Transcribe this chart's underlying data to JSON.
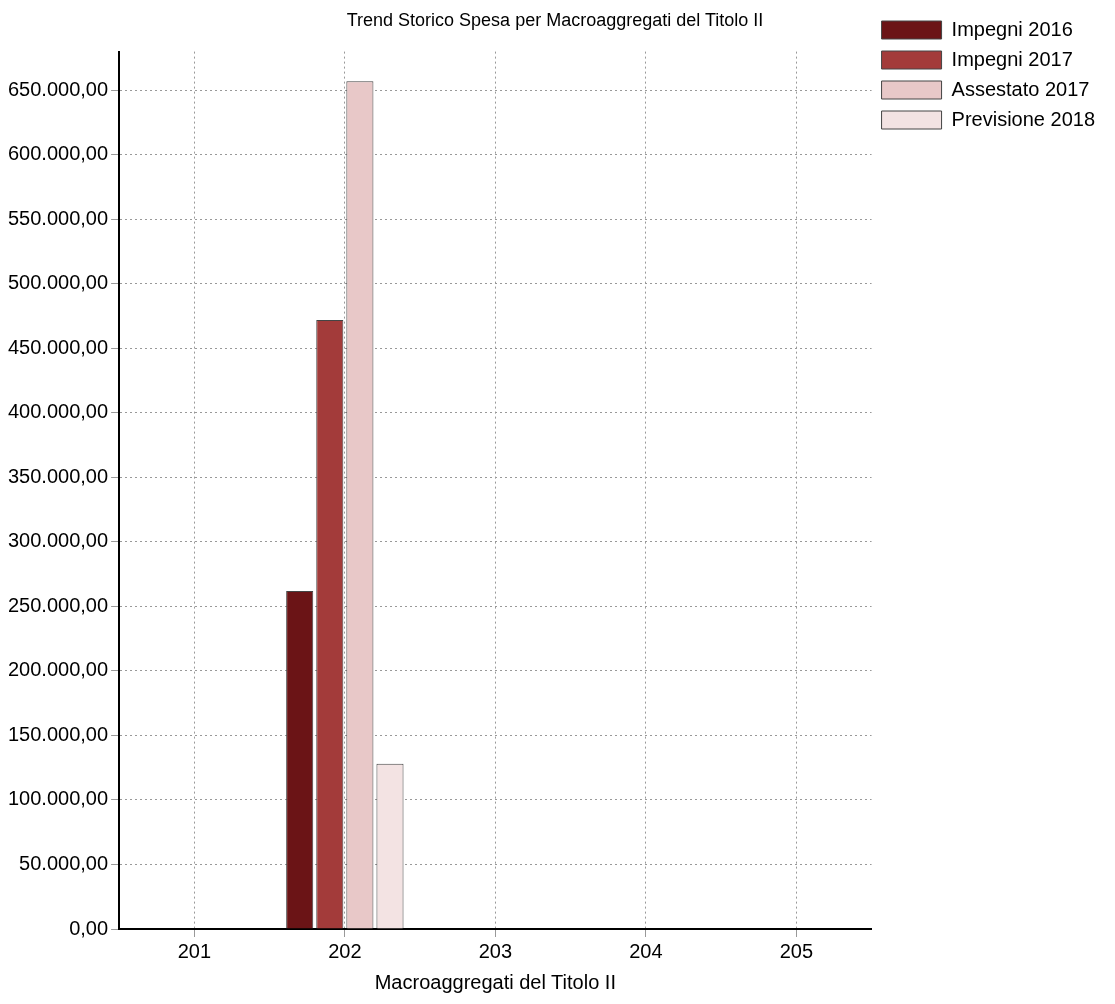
{
  "chart_data": {
    "type": "bar",
    "title": "Trend Storico Spesa per Macroaggregati del Titolo II",
    "xlabel": "Macroaggregati del Titolo II",
    "categories": [
      "201",
      "202",
      "203",
      "204",
      "205"
    ],
    "series": [
      {
        "name": "Impegni 2016",
        "color": "#6b1416",
        "values": [
          0,
          262000,
          0,
          0,
          0
        ]
      },
      {
        "name": "Impegni 2017",
        "color": "#a33b3a",
        "values": [
          0,
          472000,
          0,
          0,
          0
        ]
      },
      {
        "name": "Assestato 2017",
        "color": "#e8c8c8",
        "values": [
          0,
          657000,
          0,
          0,
          0
        ]
      },
      {
        "name": "Previsione 2018",
        "color": "#f3e3e3",
        "values": [
          0,
          128000,
          0,
          0,
          0
        ]
      }
    ],
    "ylim": [
      0,
      680000
    ],
    "yticks": [
      {
        "value": 0,
        "label": "0,00"
      },
      {
        "value": 50000,
        "label": "50.000,00"
      },
      {
        "value": 100000,
        "label": "100.000,00"
      },
      {
        "value": 150000,
        "label": "150.000,00"
      },
      {
        "value": 200000,
        "label": "200.000,00"
      },
      {
        "value": 250000,
        "label": "250.000,00"
      },
      {
        "value": 300000,
        "label": "300.000,00"
      },
      {
        "value": 350000,
        "label": "350.000,00"
      },
      {
        "value": 400000,
        "label": "400.000,00"
      },
      {
        "value": 450000,
        "label": "450.000,00"
      },
      {
        "value": 500000,
        "label": "500.000,00"
      },
      {
        "value": 550000,
        "label": "550.000,00"
      },
      {
        "value": 600000,
        "label": "600.000,00"
      },
      {
        "value": 650000,
        "label": "650.000,00"
      }
    ],
    "grid": true,
    "legend": "top right"
  }
}
